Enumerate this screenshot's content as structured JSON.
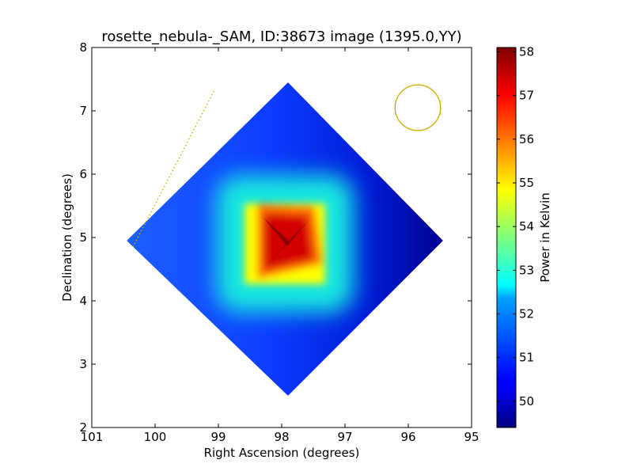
{
  "chart_data": {
    "type": "heatmap",
    "title": "rosette_nebula-_SAM, ID:38673 image (1395.0,YY)",
    "xlabel": "Right Ascension (degrees)",
    "ylabel": "Declination (degrees)",
    "xlim": [
      101,
      95
    ],
    "ylim": [
      2,
      8
    ],
    "x_ticks": [
      "101",
      "100",
      "99",
      "98",
      "97",
      "96",
      "95"
    ],
    "y_ticks": [
      "2",
      "3",
      "4",
      "5",
      "6",
      "7",
      "8"
    ],
    "colorbar": {
      "label": "Power in Kelvin",
      "range": [
        49.4,
        58.1
      ],
      "ticks": [
        "50",
        "51",
        "52",
        "53",
        "54",
        "55",
        "56",
        "57",
        "58"
      ],
      "colormap": "jet"
    },
    "map_region": {
      "shape": "diamond",
      "corners_radec": [
        [
          97.9,
          7.45
        ],
        [
          95.45,
          4.95
        ],
        [
          97.9,
          2.5
        ],
        [
          100.45,
          4.95
        ]
      ],
      "background_value": 50.8,
      "east_edge_value": 49.6
    },
    "hotspot": {
      "center_radec": [
        97.95,
        4.9
      ],
      "peak_value": 58.0,
      "half_width_deg": 0.75
    },
    "beam_circle": {
      "center_radec": [
        95.85,
        7.05
      ],
      "radius_deg": 0.36,
      "color": "#c8b400"
    },
    "dotted_line": {
      "start_radec": [
        100.35,
        4.85
      ],
      "end_radec": [
        99.05,
        7.35
      ],
      "color": "#c8b400"
    }
  }
}
